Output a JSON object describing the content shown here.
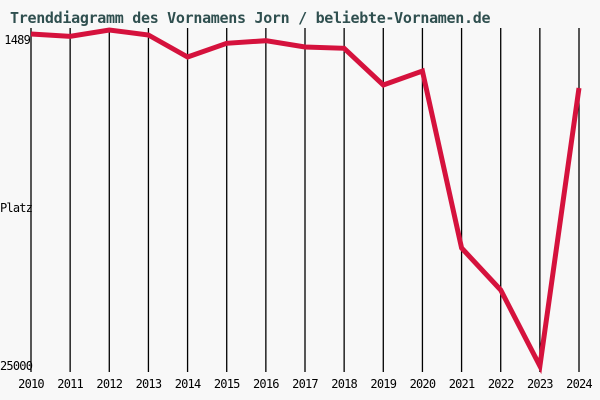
{
  "page": {
    "background_color": "#f8f8f8"
  },
  "chart": {
    "title": "Trenddiagramm des Vornamens Jorn / beliebte-Vornamen.de",
    "title_color": "#2f4f4f",
    "line_color": "#d5123d",
    "gridline_color": "#000000",
    "y_axis": {
      "top_label": "1489",
      "middle_label": "Platz",
      "bottom_label": "25000"
    }
  },
  "chart_data": {
    "type": "line",
    "title": "Trenddiagramm des Vornamens Jorn / beliebte-Vornamen.de",
    "series_name": "Jorn",
    "categories": [
      "2010",
      "2011",
      "2012",
      "2013",
      "2014",
      "2015",
      "2016",
      "2017",
      "2018",
      "2019",
      "2020",
      "2021",
      "2022",
      "2023",
      "2024"
    ],
    "values": [
      1770,
      1940,
      1489,
      1840,
      3380,
      2420,
      2240,
      2680,
      2770,
      5340,
      4360,
      16740,
      19680,
      25000,
      5550
    ],
    "xlabel": "",
    "ylabel": "Platz",
    "ylim": [
      1489,
      25000
    ],
    "y_axis_inverted": true,
    "y_tick_labels": [
      "1489",
      "25000"
    ],
    "grid": "vertical-only",
    "legend_position": "none"
  }
}
